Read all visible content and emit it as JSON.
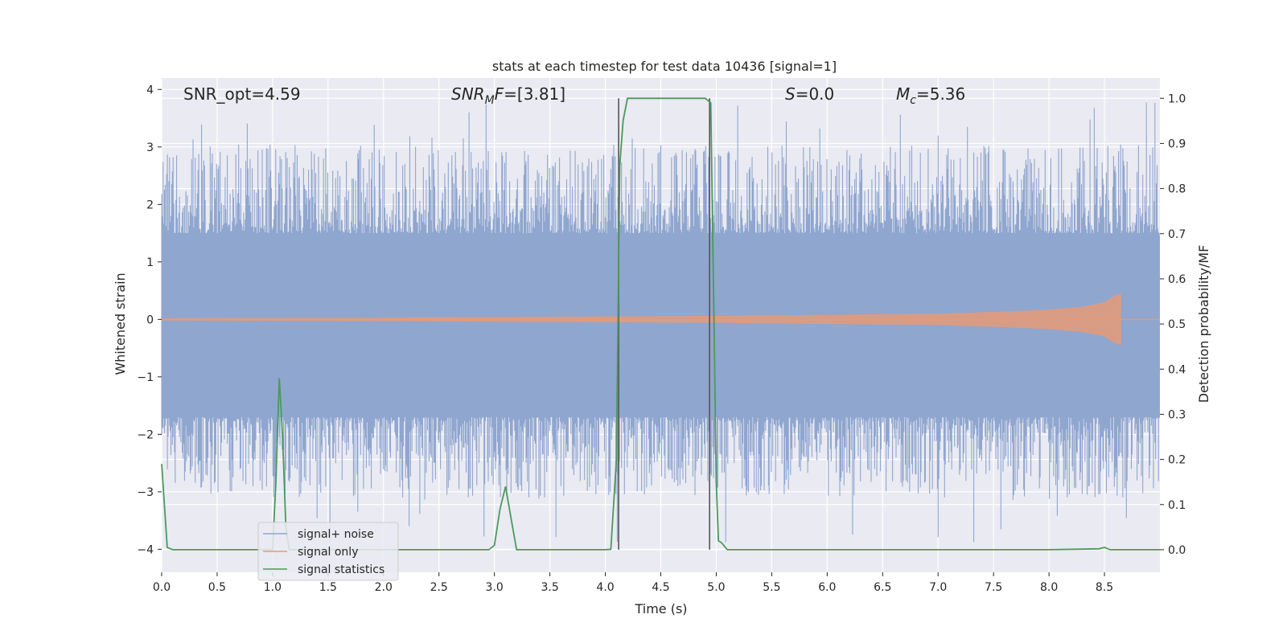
{
  "chart_data": {
    "type": "line",
    "title": "stats at each timestep for test data 10436 [signal=1]",
    "xlabel": "Time (s)",
    "ylabel_left": "Whitened strain",
    "ylabel_right": "Detection probability/MF",
    "xlim": [
      0.0,
      9.0
    ],
    "ylim_left": [
      -4.4,
      4.2
    ],
    "ylim_right": [
      -0.05,
      1.045
    ],
    "grid": true,
    "legend_position": "lower-left",
    "x_ticks": [
      "0.0",
      "0.5",
      "1.0",
      "1.5",
      "2.0",
      "2.5",
      "3.0",
      "3.5",
      "4.0",
      "4.5",
      "5.0",
      "5.5",
      "6.0",
      "6.5",
      "7.0",
      "7.5",
      "8.0",
      "8.5"
    ],
    "x_tick_values": [
      0.0,
      0.5,
      1.0,
      1.5,
      2.0,
      2.5,
      3.0,
      3.5,
      4.0,
      4.5,
      5.0,
      5.5,
      6.0,
      6.5,
      7.0,
      7.5,
      8.0,
      8.5
    ],
    "left_ticks": [
      "−4",
      "−3",
      "−2",
      "−1",
      "0",
      "1",
      "2",
      "3",
      "4"
    ],
    "left_tick_values": [
      -4,
      -3,
      -2,
      -1,
      0,
      1,
      2,
      3,
      4
    ],
    "right_ticks": [
      "0.0",
      "0.1",
      "0.2",
      "0.3",
      "0.4",
      "0.5",
      "0.6",
      "0.7",
      "0.8",
      "0.9",
      "1.0"
    ],
    "right_tick_values": [
      0.0,
      0.1,
      0.2,
      0.3,
      0.4,
      0.5,
      0.6,
      0.7,
      0.8,
      0.9,
      1.0
    ],
    "annotations": {
      "snr_opt": "SNR_opt=4.59",
      "snr_mf_base": "SNR",
      "snr_mf_sub": "M",
      "snr_mf_tail": "F",
      "snr_mf_value": "=[3.81]",
      "s_label": "S",
      "s_value": "=0.0",
      "mc_base": "M",
      "mc_sub": "c",
      "mc_value": "=5.36"
    },
    "vertical_markers": [
      4.12,
      4.94
    ],
    "series": [
      {
        "name": "signal+ noise",
        "color": "#8fa6cf",
        "axis": "left",
        "x_range": [
          0.0,
          9.0
        ],
        "core_band": [
          -1.7,
          1.45
        ],
        "peak_max": 3.8,
        "peak_min": -3.95
      },
      {
        "name": "signal only",
        "color": "#e59a78",
        "axis": "left",
        "x_range": [
          0.0,
          8.65
        ],
        "envelope_x": [
          0.0,
          2.0,
          4.0,
          5.0,
          6.0,
          7.0,
          7.5,
          8.0,
          8.3,
          8.5,
          8.6,
          8.65
        ],
        "envelope_amp": [
          0.02,
          0.03,
          0.05,
          0.06,
          0.08,
          0.1,
          0.13,
          0.17,
          0.22,
          0.3,
          0.42,
          0.45
        ]
      },
      {
        "name": "signal statistics",
        "color": "#4a9a5c",
        "axis": "right",
        "x": [
          0.0,
          0.05,
          0.1,
          0.15,
          0.5,
          1.0,
          1.03,
          1.06,
          1.09,
          1.12,
          1.15,
          1.5,
          2.0,
          2.5,
          2.95,
          3.0,
          3.05,
          3.1,
          3.15,
          3.2,
          3.5,
          4.0,
          4.05,
          4.1,
          4.13,
          4.16,
          4.2,
          4.5,
          4.9,
          4.95,
          4.98,
          5.0,
          5.02,
          5.05,
          5.1,
          5.5,
          6.0,
          7.0,
          8.0,
          8.45,
          8.5,
          8.55,
          9.0
        ],
        "y": [
          0.19,
          0.005,
          0.0,
          0.0,
          0.0,
          0.0,
          0.15,
          0.38,
          0.25,
          0.05,
          0.0,
          0.0,
          0.0,
          0.0,
          0.0,
          0.01,
          0.09,
          0.14,
          0.07,
          0.0,
          0.0,
          0.0,
          0.001,
          0.2,
          0.85,
          0.95,
          1.0,
          1.0,
          1.0,
          0.99,
          0.5,
          0.15,
          0.02,
          0.015,
          0.0,
          0.0,
          0.0,
          0.0,
          0.0,
          0.002,
          0.005,
          0.0,
          0.0
        ]
      }
    ]
  }
}
